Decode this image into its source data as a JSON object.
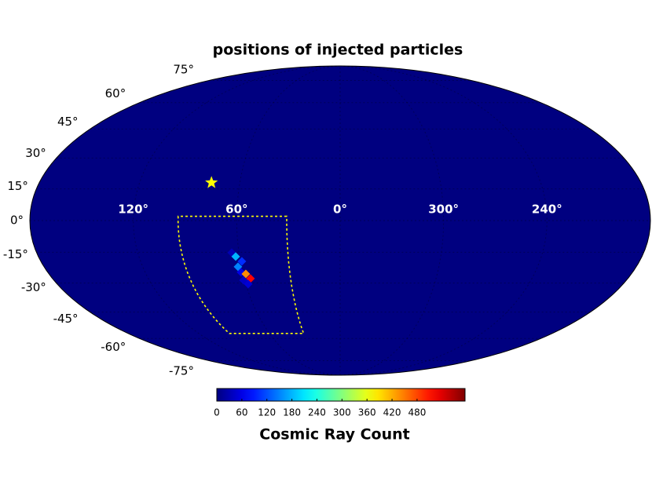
{
  "chart_data": {
    "type": "skymap",
    "projection": "mollweide",
    "title": "positions of injected particles",
    "colorbar_label": "Cosmic Ray Count",
    "colormap": "jet",
    "clim": [
      0,
      595
    ],
    "cticks": [
      0,
      60,
      120,
      180,
      240,
      300,
      360,
      420,
      480
    ],
    "xticks": [
      {
        "value": 120,
        "label": "120°"
      },
      {
        "value": 60,
        "label": "60°"
      },
      {
        "value": 0,
        "label": "0°"
      },
      {
        "value": 300,
        "label": "300°"
      },
      {
        "value": 240,
        "label": "240°"
      }
    ],
    "yticks": [
      {
        "value": 75,
        "label": "75°"
      },
      {
        "value": 60,
        "label": "60°"
      },
      {
        "value": 45,
        "label": "45°"
      },
      {
        "value": 30,
        "label": "30°"
      },
      {
        "value": 15,
        "label": "15°"
      },
      {
        "value": 0,
        "label": "0°"
      },
      {
        "value": -15,
        "label": "-15°"
      },
      {
        "value": -30,
        "label": "-30°"
      },
      {
        "value": -45,
        "label": "-45°"
      },
      {
        "value": -60,
        "label": "-60°"
      },
      {
        "value": -75,
        "label": "-75°"
      }
    ],
    "ylim": [
      -90,
      90
    ],
    "grid": true,
    "x": [
      64.3,
      62.3,
      59.1,
      62.1,
      61.0,
      58.3,
      56.1,
      60.8,
      58.5
    ],
    "y": [
      -15.2,
      -17.1,
      -19.4,
      -22.0,
      -24.7,
      -25.5,
      -27.8,
      -28.6,
      -30.5
    ],
    "values": [
      30,
      180,
      100,
      150,
      60,
      440,
      520,
      40,
      50
    ],
    "marker": {
      "x": 77,
      "y": 18,
      "color": "#ffff00"
    },
    "region": {
      "xlim": [
        31,
        94
      ],
      "ylim": [
        -57,
        2
      ],
      "color": "#ffff00"
    }
  }
}
